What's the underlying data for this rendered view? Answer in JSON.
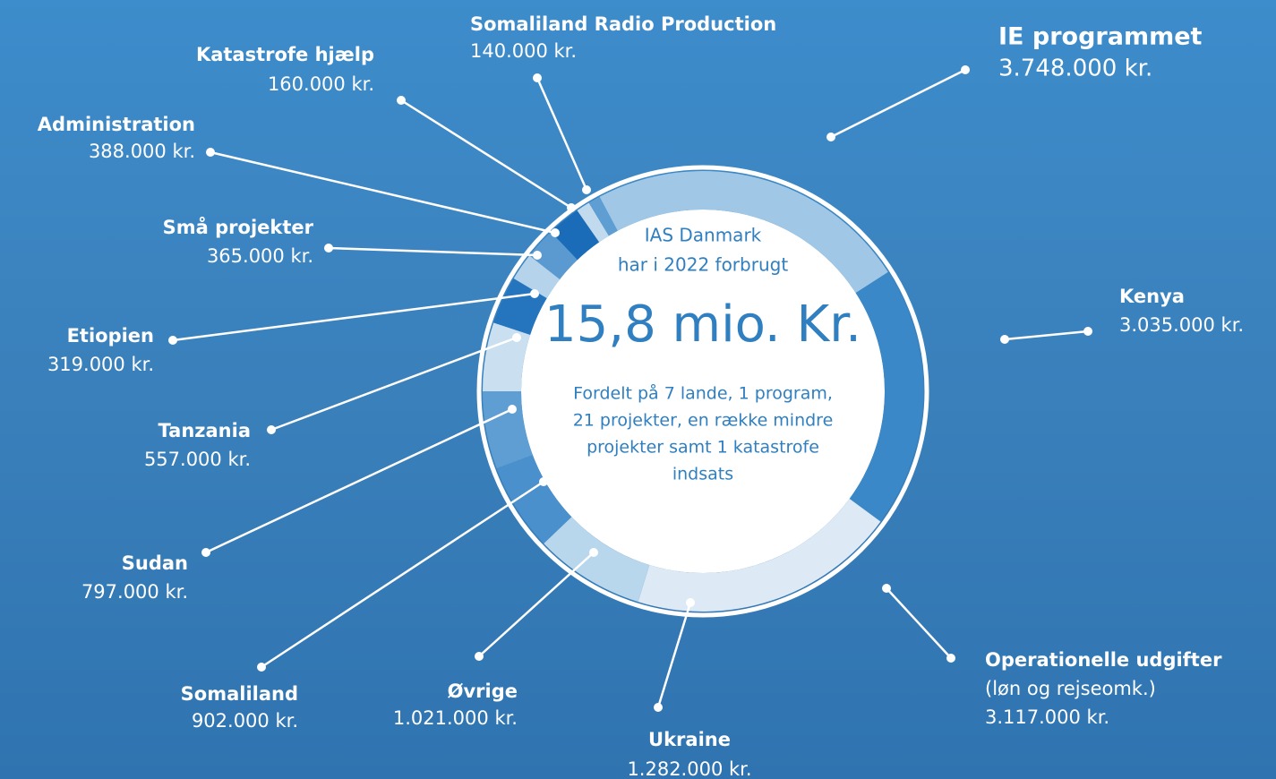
{
  "chart_data": {
    "type": "donut",
    "categories": [
      "IE programmet",
      "Kenya",
      "Operationelle udgifter",
      "Ukraine",
      "Øvrige",
      "Somaliland",
      "Sudan",
      "Tanzania",
      "Etiopien",
      "Små projekter",
      "Administration",
      "Katastrofe hjælp",
      "Somaliland Radio Production"
    ],
    "values": [
      3748000,
      3035000,
      3117000,
      1282000,
      1021000,
      902000,
      797000,
      557000,
      319000,
      365000,
      388000,
      160000,
      140000
    ],
    "value_labels": [
      "3.748.000 kr.",
      "3.035.000 kr.",
      "3.117.000 kr.",
      "1.282.000 kr.",
      "1.021.000 kr.",
      "902.000 kr.",
      "797.000 kr.",
      "557.000 kr.",
      "319.000 kr.",
      "365.000 kr.",
      "388.000 kr.",
      "160.000 kr.",
      "140.000 kr."
    ],
    "colors": [
      "#a0c7e5",
      "#3a88c8",
      "#dde9f4",
      "#b8d6ec",
      "#4a90cc",
      "#5e9ed3",
      "#cadff0",
      "#2574be",
      "#b5d3eb",
      "#5a9ad0",
      "#1a6bb8",
      "#c2daee",
      "#5e9ed3"
    ],
    "annotations": [
      {
        "category": "Operationelle udgifter",
        "text": "(løn og rejseomk.)"
      }
    ],
    "center_text": {
      "intro": [
        "IAS Danmark",
        "har i 2022 forbrugt"
      ],
      "total": "15,8 mio. Kr.",
      "description": [
        "Fordelt på 7 lande, 1 program,",
        "21 projekter, en række mindre",
        "projekter samt 1 katastrofe",
        "indsats"
      ]
    }
  }
}
